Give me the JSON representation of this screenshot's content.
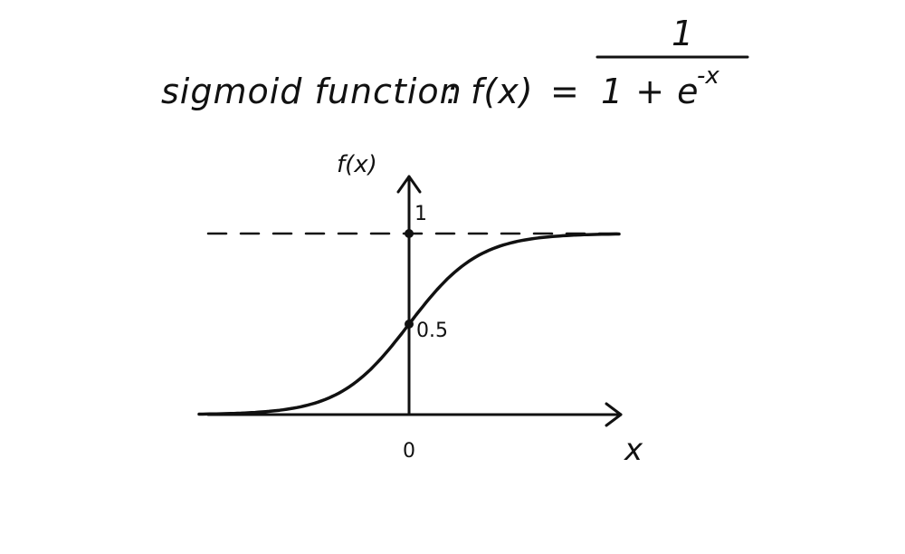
{
  "formula": {
    "label": "sigmoid function",
    "separator": ":",
    "lhs": "f(x)",
    "equals": "=",
    "numerator": "1",
    "denominator": "1 + e",
    "exponent": "-x"
  },
  "chart_data": {
    "type": "line",
    "function": "sigmoid",
    "ylabel": "f(x)",
    "xlabel": "x",
    "asymptote_value": 1,
    "asymptote_label": "1",
    "midpoint_value": 0.5,
    "midpoint_label": "0.5",
    "origin_label": "0",
    "xlim": [
      -6,
      6
    ],
    "ylim": [
      0,
      1
    ],
    "colors": {
      "ink": "#111111",
      "background": "#ffffff"
    }
  }
}
